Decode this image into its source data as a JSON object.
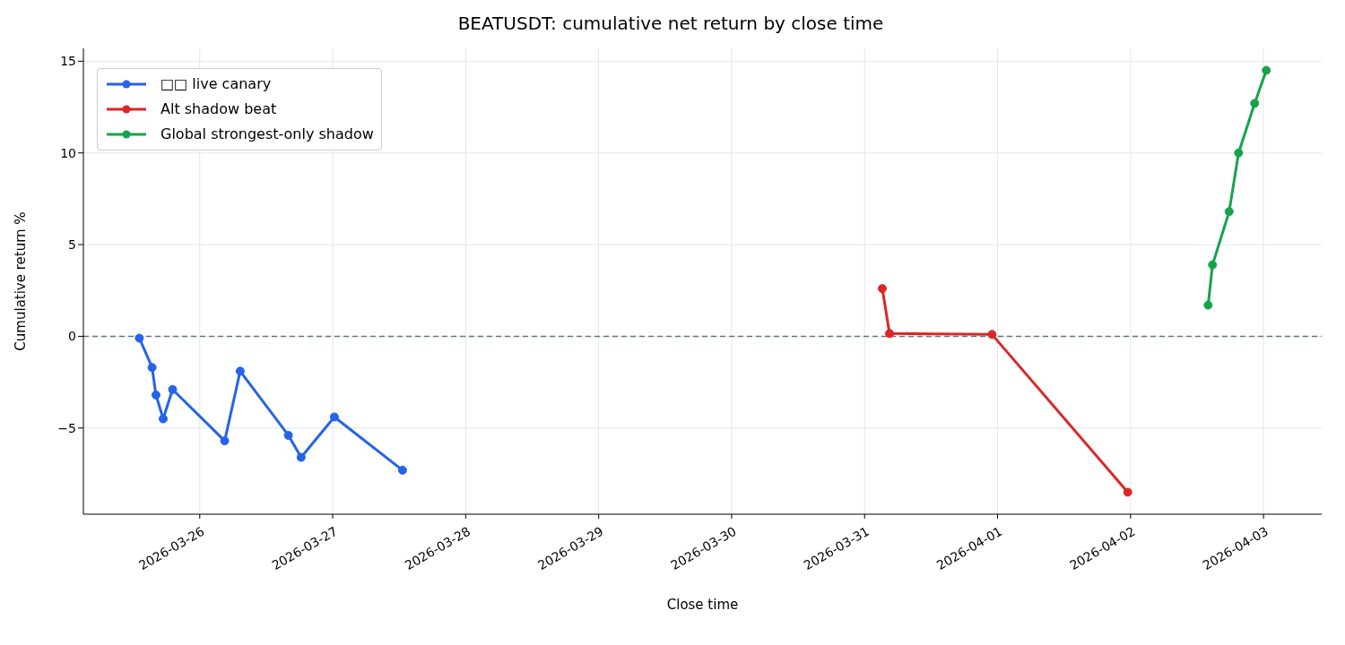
{
  "chart_data": {
    "type": "line",
    "title": "BEATUSDT: cumulative net return by close time",
    "xlabel": "Close time",
    "ylabel": "Cumulative return %",
    "series": [
      {
        "name": "□□ live canary",
        "color": "#2563eb",
        "x": [
          "2026-03-25T13:06",
          "2026-03-25T15:24",
          "2026-03-25T16:06",
          "2026-03-25T17:24",
          "2026-03-25T19:06",
          "2026-03-26T04:30",
          "2026-03-26T07:18",
          "2026-03-26T16:00",
          "2026-03-26T18:18",
          "2026-03-27T00:18",
          "2026-03-27T12:36"
        ],
        "values": [
          -0.1,
          -1.7,
          -3.2,
          -4.5,
          -2.9,
          -5.7,
          -1.9,
          -5.4,
          -6.6,
          -4.4,
          -7.3
        ]
      },
      {
        "name": "Alt shadow beat",
        "color": "#dc2626",
        "x": [
          "2026-03-31T03:12",
          "2026-03-31T04:30",
          "2026-03-31T23:00",
          "2026-04-01T23:30"
        ],
        "values": [
          2.6,
          0.15,
          0.1,
          -8.5
        ]
      },
      {
        "name": "Global strongest-only shadow",
        "color": "#16a34a",
        "x": [
          "2026-04-02T14:00",
          "2026-04-02T14:48",
          "2026-04-02T17:48",
          "2026-04-02T19:30",
          "2026-04-02T22:24",
          "2026-04-03T00:30"
        ],
        "values": [
          1.7,
          3.9,
          6.8,
          10.0,
          12.7,
          14.5
        ]
      }
    ],
    "xlim": [
      "2026-03-25T03:00",
      "2026-04-03T10:30"
    ],
    "xticks": [
      "2026-03-26",
      "2026-03-27",
      "2026-03-28",
      "2026-03-29",
      "2026-03-30",
      "2026-03-31",
      "2026-04-01",
      "2026-04-02",
      "2026-04-03"
    ],
    "ylim": [
      -9.7,
      15.7
    ],
    "yticks": [
      -5,
      0,
      5,
      10,
      15
    ],
    "ref_lines": [
      {
        "axis": "y",
        "value": 0,
        "color": "#64748b",
        "line_style": "dashed"
      }
    ],
    "grid": true,
    "legend": "top left",
    "marker": "circle",
    "line_style": "solid"
  }
}
